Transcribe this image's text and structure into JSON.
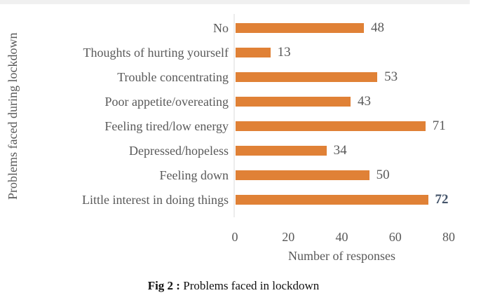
{
  "chart_data": {
    "type": "bar",
    "orientation": "horizontal",
    "title": "",
    "categories": [
      "No",
      "Thoughts of hurting yourself",
      "Trouble concentrating",
      "Poor appetite/overeating",
      "Feeling tired/low energy",
      "Depressed/hopeless",
      "Feeling down",
      "Little interest in doing things"
    ],
    "values": [
      48,
      13,
      53,
      43,
      71,
      34,
      50,
      72
    ],
    "xlabel": "Number of responses",
    "ylabel": "Problems faced during lockdown",
    "xlim": [
      0,
      80
    ],
    "xticks": [
      0,
      20,
      40,
      60,
      80
    ],
    "grid": false,
    "legend": "none",
    "data_labels": true,
    "emphasized_value_index": 7,
    "bar_color": "#e08136",
    "text_color": "#595959",
    "emphasized_value_color": "#44546a"
  },
  "caption": {
    "prefix": "Fig 2 :",
    "text": " Problems faced in lockdown"
  }
}
